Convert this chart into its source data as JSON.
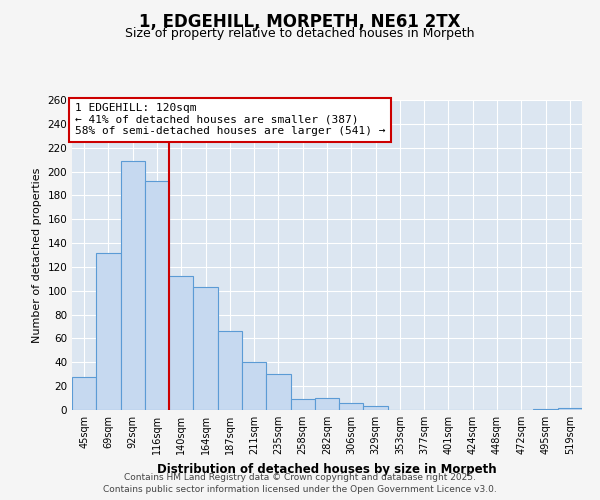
{
  "title_line1": "1, EDGEHILL, MORPETH, NE61 2TX",
  "title_line2": "Size of property relative to detached houses in Morpeth",
  "xlabel": "Distribution of detached houses by size in Morpeth",
  "ylabel": "Number of detached properties",
  "categories": [
    "45sqm",
    "69sqm",
    "92sqm",
    "116sqm",
    "140sqm",
    "164sqm",
    "187sqm",
    "211sqm",
    "235sqm",
    "258sqm",
    "282sqm",
    "306sqm",
    "329sqm",
    "353sqm",
    "377sqm",
    "401sqm",
    "424sqm",
    "448sqm",
    "472sqm",
    "495sqm",
    "519sqm"
  ],
  "values": [
    28,
    132,
    209,
    192,
    112,
    103,
    66,
    40,
    30,
    9,
    10,
    6,
    3,
    0,
    0,
    0,
    0,
    0,
    0,
    1,
    2
  ],
  "bar_color": "#c6d9f0",
  "bar_edge_color": "#5b9bd5",
  "vline_x": 3.5,
  "vline_color": "#cc0000",
  "annotation_text": "1 EDGEHILL: 120sqm\n← 41% of detached houses are smaller (387)\n58% of semi-detached houses are larger (541) →",
  "annotation_box_edge": "#cc0000",
  "ylim_max": 260,
  "yticks": [
    0,
    20,
    40,
    60,
    80,
    100,
    120,
    140,
    160,
    180,
    200,
    220,
    240,
    260
  ],
  "fig_bg": "#f5f5f5",
  "ax_bg": "#dce6f1",
  "grid_color": "#ffffff",
  "footer_line1": "Contains HM Land Registry data © Crown copyright and database right 2025.",
  "footer_line2": "Contains public sector information licensed under the Open Government Licence v3.0."
}
